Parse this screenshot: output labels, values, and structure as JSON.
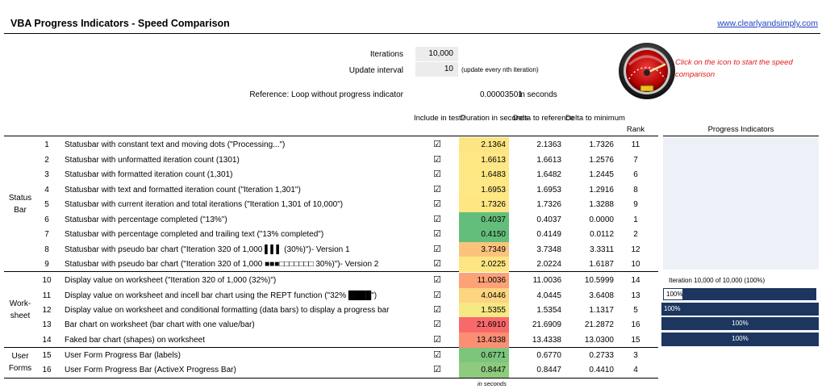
{
  "header": {
    "title": "VBA Progress Indicators  - Speed Comparison",
    "site_link": "www.clearlyandsimply.com"
  },
  "params": {
    "iterations_label": "Iterations",
    "iterations_value": "10,000",
    "update_label": "Update interval",
    "update_value": "10",
    "update_note": "(update every nth iteration)",
    "reference_label": "Reference: Loop without progress indicator",
    "reference_value": "0.00003501",
    "reference_unit": "in seconds"
  },
  "click_note": "Click on the icon to start the speed comparison",
  "columns": {
    "include": "Include in test?",
    "duration": "Duration in seconds",
    "delta_ref": "Delta to reference",
    "delta_min": "Delta to minimum",
    "rank": "Rank",
    "progress": "Progress Indicators"
  },
  "sections": {
    "status_bar": "Status Bar",
    "worksheet": "Work-sheet",
    "user_forms": "User Forms"
  },
  "rows": [
    {
      "num": "1",
      "desc": "Statusbar with constant text and moving dots (\"Processing...\")",
      "check": "☑",
      "duration": "2.1364",
      "dref": "2.1363",
      "dmin": "1.7326",
      "rank": "11",
      "color": "#fee583"
    },
    {
      "num": "2",
      "desc": "Statusbar with unformatted iteration count (1301)",
      "check": "☑",
      "duration": "1.6613",
      "dref": "1.6613",
      "dmin": "1.2576",
      "rank": "7",
      "color": "#fee784"
    },
    {
      "num": "3",
      "desc": "Statusbar with formatted iteration count (1,301)",
      "check": "☑",
      "duration": "1.6483",
      "dref": "1.6482",
      "dmin": "1.2445",
      "rank": "6",
      "color": "#fde884"
    },
    {
      "num": "4",
      "desc": "Statusbar with text and formatted iteration count (\"Iteration 1,301\")",
      "check": "☑",
      "duration": "1.6953",
      "dref": "1.6953",
      "dmin": "1.2916",
      "rank": "8",
      "color": "#fee784"
    },
    {
      "num": "5",
      "desc": "Statusbar with current iteration and total iterations (\"Iteration 1,301 of 10,000\")",
      "check": "☑",
      "duration": "1.7326",
      "dref": "1.7326",
      "dmin": "1.3288",
      "rank": "9",
      "color": "#fee683"
    },
    {
      "num": "6",
      "desc": "Statusbar with percentage completed (\"13%\")",
      "check": "☑",
      "duration": "0.4037",
      "dref": "0.4037",
      "dmin": "0.0000",
      "rank": "1",
      "color": "#63be7b"
    },
    {
      "num": "7",
      "desc": "Statusbar with percentage completed and trailing text (\"13% completed\")",
      "check": "☑",
      "duration": "0.4150",
      "dref": "0.4149",
      "dmin": "0.0112",
      "rank": "2",
      "color": "#64be7b"
    },
    {
      "num": "8",
      "desc": "Statusbar with pseudo bar chart (\"Iteration 320 of 1,000 ▌▌▌ (30%)\")- Version 1",
      "check": "☑",
      "duration": "3.7349",
      "dref": "3.7348",
      "dmin": "3.3311",
      "rank": "12",
      "color": "#fcc37c"
    },
    {
      "num": "9",
      "desc": "Statusbar with pseudo bar chart (\"Iteration 320 of 1,000 ■■■□□□□□□□ 30%)\")- Version 2",
      "check": "☑",
      "duration": "2.0225",
      "dref": "2.0224",
      "dmin": "1.6187",
      "rank": "10",
      "color": "#fee583"
    },
    {
      "num": "10",
      "desc": "Display value on worksheet (\"Iteration 320 of 1,000 (32%)\")",
      "check": "☑",
      "duration": "11.0036",
      "dref": "11.0036",
      "dmin": "10.5999",
      "rank": "14",
      "color": "#fba276"
    },
    {
      "num": "11",
      "desc": "Display value on worksheet and incell bar chart using the REPT function (\"32% ████\")",
      "check": "☑",
      "duration": "4.0446",
      "dref": "4.0445",
      "dmin": "3.6408",
      "rank": "13",
      "color": "#fdd480"
    },
    {
      "num": "12",
      "desc": "Display value on worksheet and conditional formatting (data bars) to display a progress bar",
      "check": "☑",
      "duration": "1.5355",
      "dref": "1.5354",
      "dmin": "1.1317",
      "rank": "5",
      "color": "#f6e883"
    },
    {
      "num": "13",
      "desc": "Bar chart on worksheet (bar chart with one value/bar)",
      "check": "☑",
      "duration": "21.6910",
      "dref": "21.6909",
      "dmin": "21.2872",
      "rank": "16",
      "color": "#f8696b"
    },
    {
      "num": "14",
      "desc": "Faked bar chart (shapes) on worksheet",
      "check": "☑",
      "duration": "13.4338",
      "dref": "13.4338",
      "dmin": "13.0300",
      "rank": "15",
      "color": "#fa8f73"
    },
    {
      "num": "15",
      "desc": "User Form Progress Bar (labels)",
      "check": "☑",
      "duration": "0.6771",
      "dref": "0.6770",
      "dmin": "0.2733",
      "rank": "3",
      "color": "#7dc57d"
    },
    {
      "num": "16",
      "desc": "User Form Progress Bar (ActiveX Progress Bar)",
      "check": "☑",
      "duration": "0.8447",
      "dref": "0.8447",
      "dmin": "0.4410",
      "rank": "4",
      "color": "#8ecb7e"
    }
  ],
  "footer_unit": "in seconds",
  "progress_indicators": {
    "row10_text": "Iteration 10,000 of 10,000 (100%)",
    "row11_label": "100%",
    "row12_label": "100%",
    "row13_label": "100%",
    "row14_label": "100%",
    "bar_color": "#1c3660"
  }
}
